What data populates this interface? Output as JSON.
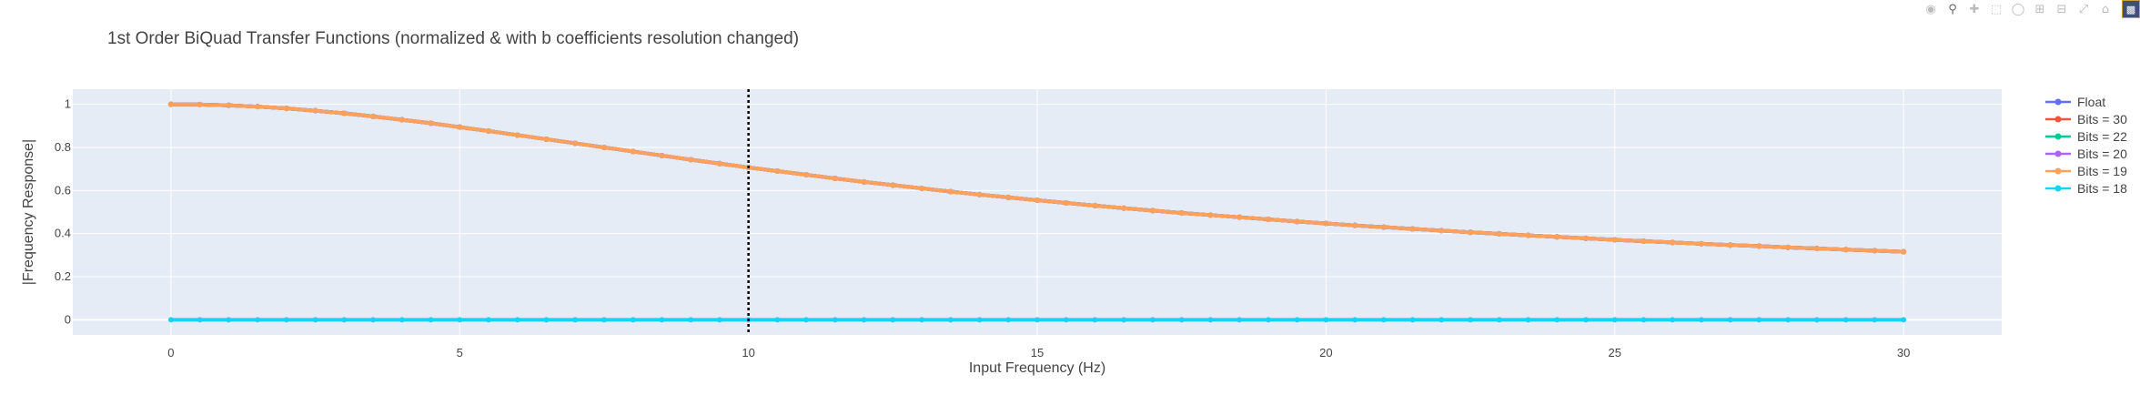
{
  "chart_data": {
    "type": "line",
    "title": "1st Order BiQuad Transfer Functions (normalized & with b coefficients resolution changed)",
    "xlabel": "Input Frequency (Hz)",
    "ylabel": "|Frequency Response|",
    "xlim": [
      -1.7,
      31.7
    ],
    "ylim": [
      -0.07,
      1.07
    ],
    "x_ticks": [
      "0",
      "5",
      "10",
      "15",
      "20",
      "25",
      "30"
    ],
    "y_ticks": [
      "0",
      "0.2",
      "0.4",
      "0.6",
      "0.8",
      "1"
    ],
    "grid": true,
    "plot_background": "#e5ecf6",
    "legend_position": "right",
    "vline": {
      "x": 10,
      "style": "dotted",
      "color": "#000000"
    },
    "x": [
      0,
      0.5,
      1,
      1.5,
      2,
      2.5,
      3,
      3.5,
      4,
      4.5,
      5,
      5.5,
      6,
      6.5,
      7,
      7.5,
      8,
      8.5,
      9,
      9.5,
      10,
      10.5,
      11,
      11.5,
      12,
      12.5,
      13,
      13.5,
      14,
      14.5,
      15,
      15.5,
      16,
      16.5,
      17,
      17.5,
      18,
      18.5,
      19,
      19.5,
      20,
      20.5,
      21,
      21.5,
      22,
      22.5,
      23,
      23.5,
      24,
      24.5,
      25,
      25.5,
      26,
      26.5,
      27,
      27.5,
      28,
      28.5,
      29,
      29.5,
      30
    ],
    "series": [
      {
        "name": "Float",
        "color": "#636efa",
        "values": [
          1.0,
          0.999,
          0.995,
          0.989,
          0.981,
          0.97,
          0.958,
          0.944,
          0.928,
          0.912,
          0.894,
          0.876,
          0.857,
          0.838,
          0.819,
          0.8,
          0.781,
          0.762,
          0.743,
          0.725,
          0.707,
          0.69,
          0.673,
          0.656,
          0.64,
          0.625,
          0.61,
          0.595,
          0.581,
          0.568,
          0.555,
          0.542,
          0.53,
          0.518,
          0.507,
          0.496,
          0.486,
          0.476,
          0.466,
          0.456,
          0.447,
          0.438,
          0.43,
          0.422,
          0.414,
          0.406,
          0.399,
          0.392,
          0.385,
          0.378,
          0.371,
          0.365,
          0.359,
          0.353,
          0.347,
          0.342,
          0.336,
          0.331,
          0.326,
          0.321,
          0.316
        ]
      },
      {
        "name": "Bits = 30",
        "color": "#ef553b",
        "values": [
          1.0,
          0.999,
          0.995,
          0.989,
          0.981,
          0.97,
          0.958,
          0.944,
          0.928,
          0.912,
          0.894,
          0.876,
          0.857,
          0.838,
          0.819,
          0.8,
          0.781,
          0.762,
          0.743,
          0.725,
          0.707,
          0.69,
          0.673,
          0.656,
          0.64,
          0.625,
          0.61,
          0.595,
          0.581,
          0.568,
          0.555,
          0.542,
          0.53,
          0.518,
          0.507,
          0.496,
          0.486,
          0.476,
          0.466,
          0.456,
          0.447,
          0.438,
          0.43,
          0.422,
          0.414,
          0.406,
          0.399,
          0.392,
          0.385,
          0.378,
          0.371,
          0.365,
          0.359,
          0.353,
          0.347,
          0.342,
          0.336,
          0.331,
          0.326,
          0.321,
          0.316
        ]
      },
      {
        "name": "Bits = 22",
        "color": "#00cc96",
        "values": [
          1.0,
          0.999,
          0.995,
          0.989,
          0.981,
          0.97,
          0.958,
          0.944,
          0.928,
          0.912,
          0.894,
          0.876,
          0.857,
          0.838,
          0.819,
          0.8,
          0.781,
          0.762,
          0.743,
          0.725,
          0.707,
          0.69,
          0.673,
          0.656,
          0.64,
          0.625,
          0.61,
          0.595,
          0.581,
          0.568,
          0.555,
          0.542,
          0.53,
          0.518,
          0.507,
          0.496,
          0.486,
          0.476,
          0.466,
          0.456,
          0.447,
          0.438,
          0.43,
          0.422,
          0.414,
          0.406,
          0.399,
          0.392,
          0.385,
          0.378,
          0.371,
          0.365,
          0.359,
          0.353,
          0.347,
          0.342,
          0.336,
          0.331,
          0.326,
          0.321,
          0.316
        ]
      },
      {
        "name": "Bits = 20",
        "color": "#ab63fa",
        "values": [
          1.0,
          0.999,
          0.995,
          0.989,
          0.981,
          0.97,
          0.958,
          0.944,
          0.928,
          0.912,
          0.894,
          0.876,
          0.857,
          0.838,
          0.819,
          0.8,
          0.781,
          0.762,
          0.743,
          0.725,
          0.707,
          0.69,
          0.673,
          0.656,
          0.64,
          0.625,
          0.61,
          0.595,
          0.581,
          0.568,
          0.555,
          0.542,
          0.53,
          0.518,
          0.507,
          0.496,
          0.486,
          0.476,
          0.466,
          0.456,
          0.447,
          0.438,
          0.43,
          0.422,
          0.414,
          0.406,
          0.399,
          0.392,
          0.385,
          0.378,
          0.371,
          0.365,
          0.359,
          0.353,
          0.347,
          0.342,
          0.336,
          0.331,
          0.326,
          0.321,
          0.316
        ]
      },
      {
        "name": "Bits = 19",
        "color": "#ffa15a",
        "values": [
          1.0,
          0.999,
          0.995,
          0.989,
          0.981,
          0.97,
          0.958,
          0.944,
          0.928,
          0.912,
          0.894,
          0.876,
          0.857,
          0.838,
          0.819,
          0.8,
          0.781,
          0.762,
          0.743,
          0.725,
          0.707,
          0.69,
          0.673,
          0.656,
          0.64,
          0.625,
          0.61,
          0.595,
          0.581,
          0.568,
          0.555,
          0.542,
          0.53,
          0.518,
          0.507,
          0.496,
          0.486,
          0.476,
          0.466,
          0.456,
          0.447,
          0.438,
          0.43,
          0.422,
          0.414,
          0.406,
          0.399,
          0.392,
          0.385,
          0.378,
          0.371,
          0.365,
          0.359,
          0.353,
          0.347,
          0.342,
          0.336,
          0.331,
          0.326,
          0.321,
          0.316
        ]
      },
      {
        "name": "Bits = 18",
        "color": "#19d3f3",
        "values": [
          0,
          0,
          0,
          0,
          0,
          0,
          0,
          0,
          0,
          0,
          0,
          0,
          0,
          0,
          0,
          0,
          0,
          0,
          0,
          0,
          0,
          0,
          0,
          0,
          0,
          0,
          0,
          0,
          0,
          0,
          0,
          0,
          0,
          0,
          0,
          0,
          0,
          0,
          0,
          0,
          0,
          0,
          0,
          0,
          0,
          0,
          0,
          0,
          0,
          0,
          0,
          0,
          0,
          0,
          0,
          0,
          0,
          0,
          0,
          0,
          0
        ]
      }
    ]
  },
  "modebar": {
    "icons": [
      "camera-icon",
      "zoom-icon",
      "pan-icon",
      "box-select-icon",
      "lasso-icon",
      "zoom-in-icon",
      "zoom-out-icon",
      "autoscale-icon",
      "home-icon",
      "plotly-logo-icon"
    ]
  }
}
